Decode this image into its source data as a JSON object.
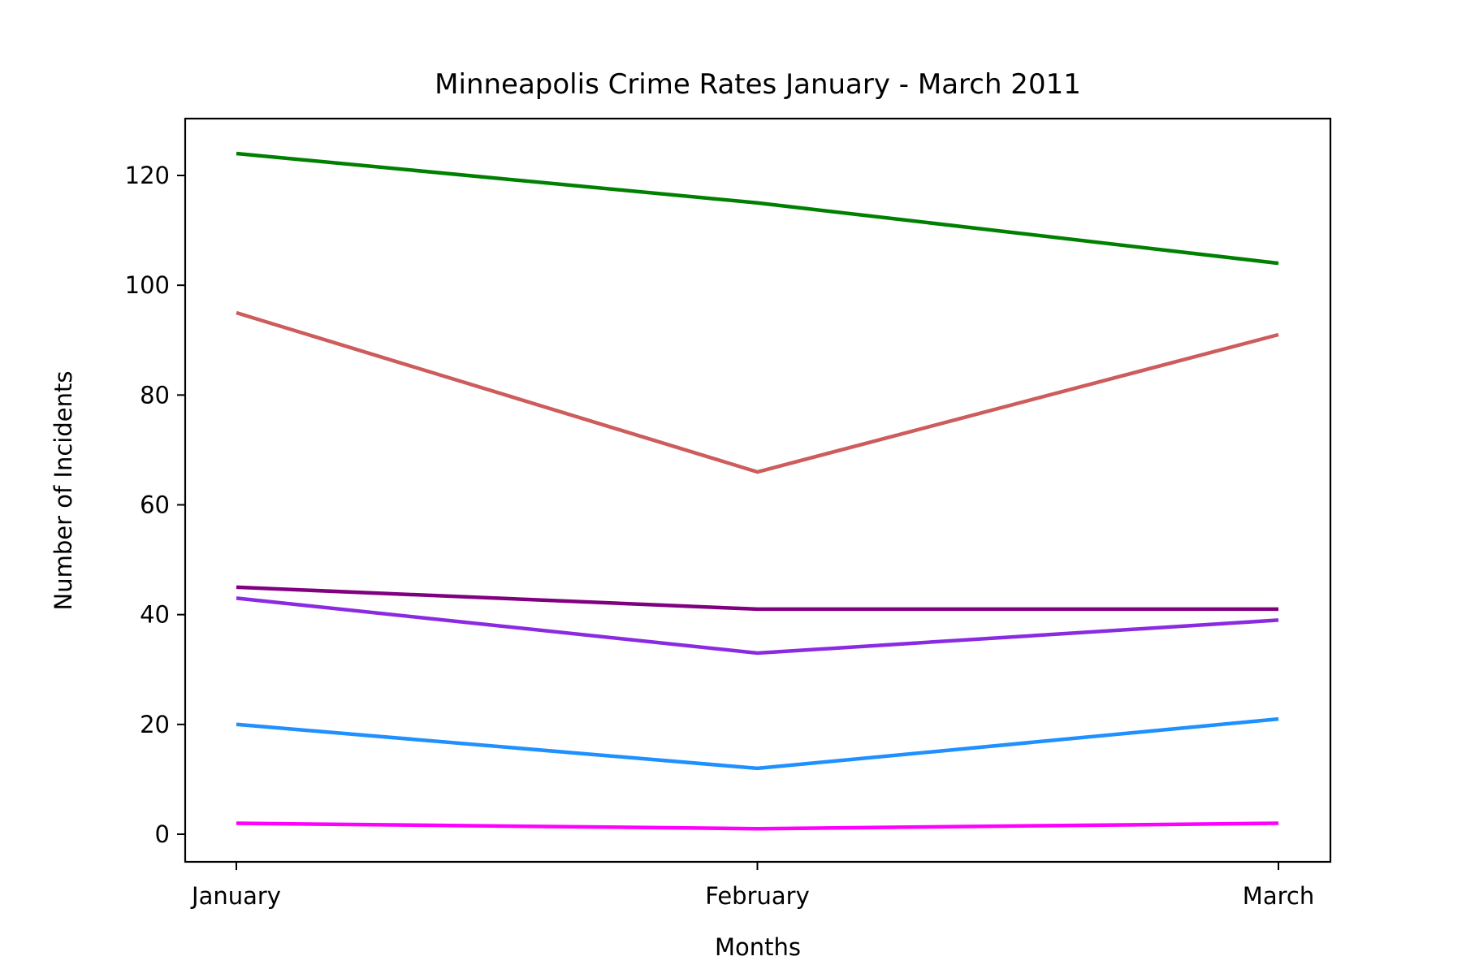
{
  "chart_data": {
    "type": "line",
    "title": "Minneapolis Crime Rates January - March 2011",
    "xlabel": "Months",
    "ylabel": "Number of Incidents",
    "categories": [
      "January",
      "February",
      "March"
    ],
    "yticks": [
      0,
      20,
      40,
      60,
      80,
      100,
      120
    ],
    "ylim": [
      -5,
      130
    ],
    "grid": false,
    "legend": "none",
    "series": [
      {
        "color": "#008000",
        "values": [
          124,
          115,
          104
        ]
      },
      {
        "color": "#cd5c5c",
        "values": [
          95,
          66,
          91
        ]
      },
      {
        "color": "#800080",
        "values": [
          45,
          41,
          41
        ]
      },
      {
        "color": "#8a2be2",
        "values": [
          43,
          33,
          39
        ]
      },
      {
        "color": "#1e90ff",
        "values": [
          20,
          12,
          21
        ]
      },
      {
        "color": "#ff00ff",
        "values": [
          2,
          1,
          2
        ]
      }
    ]
  }
}
